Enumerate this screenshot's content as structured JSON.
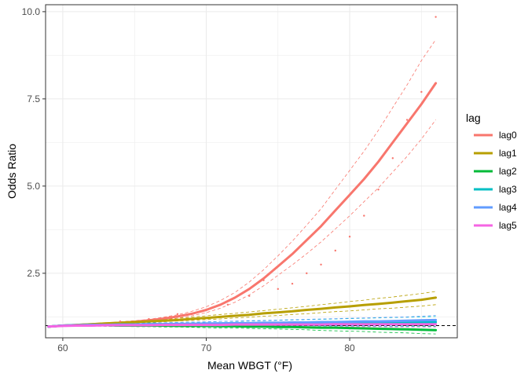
{
  "chart_data": {
    "type": "line",
    "title": "",
    "xlabel": "Mean WBGT (°F)",
    "ylabel": "Odds Ratio",
    "xlim": [
      58.8,
      87.5
    ],
    "ylim": [
      0.65,
      10.2
    ],
    "xticks": [
      60,
      70,
      80
    ],
    "yticks": [
      "2.5",
      "5.0",
      "7.5",
      "10.0"
    ],
    "grid": true,
    "legend_placement": "right",
    "legend_title": "lag",
    "reference_line": {
      "y": 1.0,
      "style": "dashed",
      "color": "#000000"
    },
    "x": [
      59,
      60,
      61,
      62,
      63,
      64,
      65,
      66,
      67,
      68,
      69,
      70,
      71,
      72,
      73,
      74,
      75,
      76,
      77,
      78,
      79,
      80,
      81,
      82,
      83,
      84,
      85,
      86
    ],
    "series": [
      {
        "name": "lag0",
        "color": "#F8766D",
        "values": [
          0.97,
          1.0,
          1.02,
          1.04,
          1.06,
          1.08,
          1.11,
          1.15,
          1.2,
          1.26,
          1.34,
          1.45,
          1.6,
          1.8,
          2.05,
          2.35,
          2.7,
          3.05,
          3.45,
          3.85,
          4.3,
          4.75,
          5.2,
          5.7,
          6.25,
          6.8,
          7.35,
          7.95
        ],
        "lower": [
          0.95,
          0.98,
          1.0,
          1.02,
          1.04,
          1.06,
          1.09,
          1.12,
          1.16,
          1.21,
          1.28,
          1.37,
          1.5,
          1.67,
          1.88,
          2.14,
          2.44,
          2.74,
          3.06,
          3.4,
          3.77,
          4.15,
          4.55,
          4.95,
          5.4,
          5.85,
          6.35,
          6.9
        ],
        "upper": [
          0.99,
          1.02,
          1.04,
          1.06,
          1.08,
          1.11,
          1.14,
          1.18,
          1.24,
          1.31,
          1.41,
          1.54,
          1.72,
          1.95,
          2.25,
          2.6,
          3.0,
          3.42,
          3.88,
          4.35,
          4.9,
          5.45,
          6.0,
          6.6,
          7.25,
          7.9,
          8.6,
          9.2
        ]
      },
      {
        "name": "lag1",
        "color": "#B79F00",
        "values": [
          0.97,
          1.0,
          1.02,
          1.04,
          1.06,
          1.08,
          1.1,
          1.12,
          1.14,
          1.16,
          1.19,
          1.22,
          1.25,
          1.28,
          1.31,
          1.35,
          1.38,
          1.41,
          1.45,
          1.48,
          1.52,
          1.55,
          1.59,
          1.62,
          1.66,
          1.7,
          1.74,
          1.8
        ],
        "lower": [
          0.95,
          0.98,
          1.0,
          1.02,
          1.04,
          1.05,
          1.07,
          1.09,
          1.11,
          1.13,
          1.15,
          1.17,
          1.19,
          1.22,
          1.24,
          1.27,
          1.29,
          1.32,
          1.34,
          1.37,
          1.4,
          1.42,
          1.45,
          1.48,
          1.5,
          1.53,
          1.56,
          1.6
        ],
        "upper": [
          0.99,
          1.02,
          1.04,
          1.06,
          1.08,
          1.11,
          1.13,
          1.16,
          1.18,
          1.21,
          1.24,
          1.28,
          1.32,
          1.35,
          1.39,
          1.43,
          1.47,
          1.51,
          1.55,
          1.6,
          1.64,
          1.69,
          1.73,
          1.78,
          1.82,
          1.87,
          1.92,
          1.98
        ]
      },
      {
        "name": "lag2",
        "color": "#00BA38",
        "values": [
          0.97,
          1.0,
          1.01,
          1.01,
          1.01,
          1.0,
          1.0,
          1.0,
          1.0,
          0.99,
          0.99,
          0.99,
          0.98,
          0.98,
          0.97,
          0.97,
          0.96,
          0.96,
          0.95,
          0.94,
          0.94,
          0.93,
          0.92,
          0.91,
          0.9,
          0.89,
          0.88,
          0.87
        ],
        "lower": [
          0.95,
          0.98,
          0.99,
          0.99,
          0.98,
          0.98,
          0.97,
          0.97,
          0.96,
          0.96,
          0.95,
          0.94,
          0.93,
          0.93,
          0.92,
          0.91,
          0.9,
          0.89,
          0.88,
          0.86,
          0.85,
          0.84,
          0.83,
          0.81,
          0.8,
          0.79,
          0.77,
          0.76
        ],
        "upper": [
          0.99,
          1.02,
          1.03,
          1.03,
          1.04,
          1.03,
          1.03,
          1.03,
          1.04,
          1.03,
          1.03,
          1.04,
          1.03,
          1.03,
          1.03,
          1.03,
          1.03,
          1.03,
          1.03,
          1.03,
          1.03,
          1.02,
          1.02,
          1.02,
          1.01,
          1.0,
          0.99,
          0.98
        ]
      },
      {
        "name": "lag3",
        "color": "#00BFC4",
        "values": [
          0.97,
          1.0,
          1.01,
          1.02,
          1.02,
          1.03,
          1.03,
          1.04,
          1.04,
          1.04,
          1.05,
          1.05,
          1.06,
          1.06,
          1.06,
          1.07,
          1.07,
          1.07,
          1.08,
          1.08,
          1.08,
          1.09,
          1.09,
          1.09,
          1.1,
          1.1,
          1.1,
          1.1
        ],
        "lower": [
          0.95,
          0.98,
          0.99,
          0.99,
          0.99,
          1.0,
          1.0,
          1.0,
          1.0,
          1.0,
          1.0,
          1.0,
          1.0,
          1.0,
          1.0,
          1.0,
          1.0,
          1.0,
          1.0,
          0.99,
          0.99,
          0.99,
          0.99,
          0.98,
          0.98,
          0.98,
          0.97,
          0.97
        ],
        "upper": [
          0.99,
          1.02,
          1.03,
          1.05,
          1.06,
          1.06,
          1.07,
          1.08,
          1.08,
          1.09,
          1.1,
          1.1,
          1.12,
          1.12,
          1.13,
          1.14,
          1.15,
          1.16,
          1.17,
          1.18,
          1.19,
          1.2,
          1.21,
          1.22,
          1.23,
          1.24,
          1.25,
          1.26
        ]
      },
      {
        "name": "lag4",
        "color": "#619CFF",
        "values": [
          0.97,
          1.0,
          1.01,
          1.02,
          1.02,
          1.03,
          1.03,
          1.04,
          1.04,
          1.05,
          1.05,
          1.06,
          1.06,
          1.07,
          1.07,
          1.08,
          1.08,
          1.09,
          1.09,
          1.1,
          1.1,
          1.11,
          1.12,
          1.12,
          1.13,
          1.14,
          1.15,
          1.16
        ],
        "lower": [
          0.95,
          0.98,
          0.99,
          1.0,
          1.0,
          1.0,
          1.0,
          1.01,
          1.01,
          1.01,
          1.01,
          1.01,
          1.01,
          1.01,
          1.01,
          1.01,
          1.01,
          1.01,
          1.01,
          1.01,
          1.01,
          1.01,
          1.01,
          1.01,
          1.01,
          1.01,
          1.01,
          1.01
        ],
        "upper": [
          0.99,
          1.02,
          1.03,
          1.04,
          1.05,
          1.06,
          1.06,
          1.07,
          1.08,
          1.09,
          1.1,
          1.11,
          1.12,
          1.13,
          1.14,
          1.15,
          1.16,
          1.17,
          1.18,
          1.19,
          1.2,
          1.21,
          1.22,
          1.23,
          1.24,
          1.25,
          1.27,
          1.29
        ]
      },
      {
        "name": "lag5",
        "color": "#F564E3",
        "values": [
          0.97,
          0.99,
          1.0,
          1.0,
          1.01,
          1.01,
          1.01,
          1.01,
          1.02,
          1.02,
          1.02,
          1.02,
          1.02,
          1.03,
          1.03,
          1.03,
          1.03,
          1.03,
          1.03,
          1.03,
          1.04,
          1.04,
          1.04,
          1.04,
          1.04,
          1.04,
          1.04,
          1.04
        ],
        "lower": [
          0.95,
          0.97,
          0.98,
          0.98,
          0.98,
          0.98,
          0.98,
          0.98,
          0.98,
          0.98,
          0.98,
          0.98,
          0.98,
          0.98,
          0.98,
          0.98,
          0.98,
          0.98,
          0.97,
          0.97,
          0.97,
          0.97,
          0.97,
          0.97,
          0.96,
          0.96,
          0.96,
          0.96
        ],
        "upper": [
          0.99,
          1.01,
          1.02,
          1.03,
          1.04,
          1.04,
          1.05,
          1.05,
          1.06,
          1.06,
          1.07,
          1.07,
          1.07,
          1.08,
          1.08,
          1.09,
          1.09,
          1.09,
          1.1,
          1.1,
          1.11,
          1.11,
          1.12,
          1.12,
          1.13,
          1.13,
          1.14,
          1.14
        ]
      }
    ],
    "scatter": {
      "series": "lag0",
      "x": [
        64,
        66,
        68,
        70,
        71.5,
        73,
        74,
        75,
        76,
        77,
        78,
        79,
        80,
        81,
        82,
        83,
        84,
        85,
        86
      ],
      "y": [
        1.12,
        1.19,
        1.33,
        1.45,
        1.6,
        1.85,
        2.3,
        2.05,
        2.2,
        2.5,
        2.75,
        3.15,
        3.55,
        4.15,
        4.9,
        5.8,
        6.9,
        7.7,
        9.85
      ]
    }
  }
}
